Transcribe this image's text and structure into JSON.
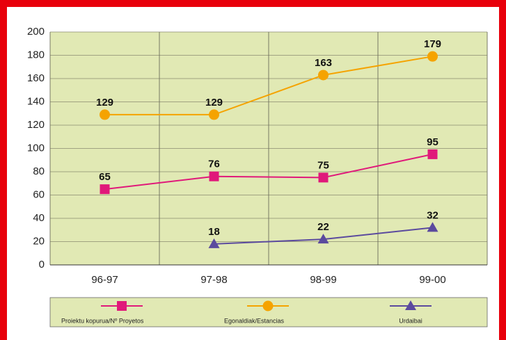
{
  "chart_data": {
    "type": "line",
    "categories": [
      "96-97",
      "97-98",
      "98-99",
      "99-00"
    ],
    "series": [
      {
        "name": "Proiektu kopurua/Nº Proyetos",
        "color": "#e0197a",
        "marker": "square",
        "values": [
          65,
          76,
          75,
          95
        ]
      },
      {
        "name": "Egonaldiak/Estancias",
        "color": "#f5a300",
        "marker": "circle",
        "values": [
          129,
          129,
          163,
          179
        ]
      },
      {
        "name": "Urdaibai",
        "color": "#5b4a9e",
        "marker": "triangle",
        "values": [
          null,
          18,
          22,
          32
        ]
      }
    ],
    "ylim": [
      0,
      200
    ],
    "yticks": [
      0,
      20,
      40,
      60,
      80,
      100,
      120,
      140,
      160,
      180,
      200
    ],
    "grid": true,
    "legend": "bottom"
  }
}
